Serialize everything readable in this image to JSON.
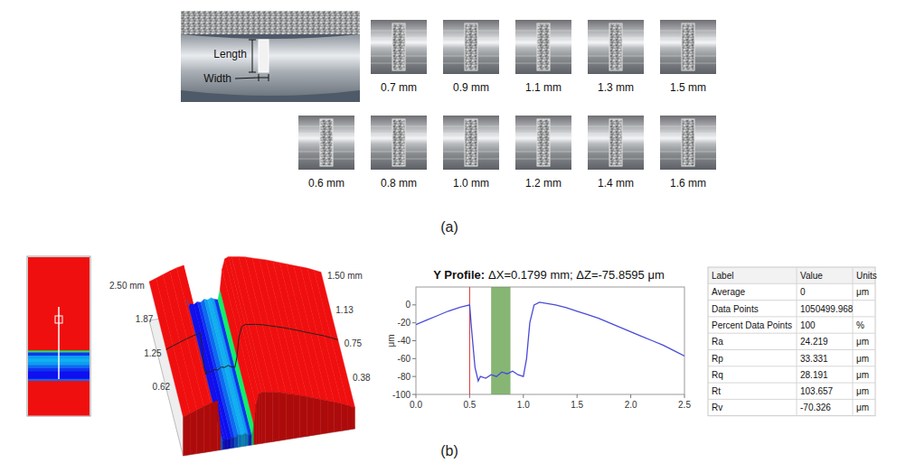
{
  "panel_a": {
    "label": "(a)",
    "annotations": [
      "Length",
      "Width"
    ],
    "row1": [
      "0.7 mm",
      "0.9 mm",
      "1.1 mm",
      "1.3 mm",
      "1.5 mm"
    ],
    "row2": [
      "0.6 mm",
      "0.8 mm",
      "1.0 mm",
      "1.2 mm",
      "1.4 mm",
      "1.6 mm"
    ]
  },
  "panel_b": {
    "label": "(b)",
    "axis_a_labels": [
      "2.50 mm",
      "1.87",
      "1.25",
      "0.62"
    ],
    "axis_b_labels": [
      "1.50 mm",
      "1.13",
      "0.75",
      "0.38"
    ],
    "table": {
      "header": [
        "Label",
        "Value",
        "Units"
      ],
      "rows": [
        [
          "Average",
          0,
          "μm"
        ],
        [
          "Data Points",
          1050499.968
        ],
        [
          "Percent Data Points",
          100,
          "%"
        ],
        [
          "Ra",
          24.219,
          "μm"
        ],
        [
          "Rp",
          33.331,
          "μm"
        ],
        [
          "Rq",
          28.191,
          "μm"
        ],
        [
          "Rt",
          103.657,
          "μm"
        ],
        [
          "Rv",
          -70.326,
          "μm"
        ]
      ]
    }
  },
  "chart_data": {
    "type": "line",
    "title": "Y Profile:",
    "subtitle": "ΔX=0.1799 mm; ΔZ=-75.8595 μm",
    "y_label": "μm",
    "x": [
      0,
      0.1,
      0.2,
      0.3,
      0.4,
      0.5,
      0.52,
      0.55,
      0.58,
      0.6,
      0.65,
      0.7,
      0.75,
      0.8,
      0.85,
      0.9,
      0.95,
      1.0,
      1.03,
      1.06,
      1.1,
      1.15,
      1.2,
      1.3,
      1.4,
      1.5,
      1.6,
      1.7,
      1.8,
      1.9,
      2.0,
      2.1,
      2.2,
      2.3,
      2.4,
      2.5
    ],
    "values": [
      -22,
      -17,
      -12,
      -7,
      -3,
      0,
      -30,
      -70,
      -85,
      -80,
      -82,
      -78,
      -80,
      -75,
      -77,
      -74,
      -78,
      -80,
      -60,
      -20,
      0,
      3,
      2,
      0,
      -3,
      -7,
      -11,
      -15,
      -20,
      -25,
      -30,
      -35,
      -40,
      -45,
      -51,
      -57
    ],
    "color": "#4a4ad8",
    "xlim": [
      0,
      2.5
    ],
    "ylim": [
      -100,
      20
    ],
    "xticks": [
      {
        "value": 0,
        "label": "0.0"
      },
      0.5,
      {
        "value": 1,
        "label": "1.0"
      },
      1.5,
      {
        "value": 2,
        "label": "2.0"
      },
      2.5
    ],
    "yticks": [
      0,
      -20,
      -40,
      -60,
      -80,
      -100
    ],
    "highlight": [
      0.7,
      0.88
    ],
    "markers": [
      0.5
    ]
  }
}
